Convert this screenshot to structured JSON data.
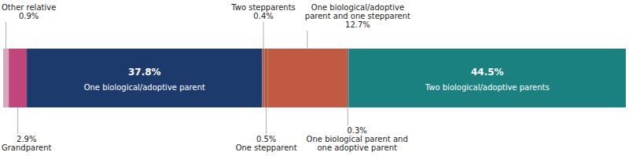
{
  "chart_data": {
    "type": "bar",
    "orientation": "horizontal",
    "stacked": true,
    "data_labels": true,
    "tick_labels": false,
    "categories": [
      null
    ],
    "xlim": [
      0,
      100
    ],
    "series": [
      {
        "name": "Other relative",
        "color": "#d4a8be",
        "values": [
          0.9
        ],
        "value_labels": [
          "0.9%"
        ]
      },
      {
        "name": "Grandparent",
        "color": "#c0457a",
        "values": [
          2.9
        ],
        "value_labels": [
          "2.9%"
        ]
      },
      {
        "name": "One biological/adoptive parent",
        "color": "#1c3a6b",
        "values": [
          37.8
        ],
        "value_labels": [
          "37.8%"
        ]
      },
      {
        "name": "Two stepparents",
        "color": "#b06060",
        "values": [
          0.4
        ],
        "value_labels": [
          "0.4%"
        ]
      },
      {
        "name": "One stepparent",
        "color": "#b05a3a",
        "values": [
          0.5
        ],
        "value_labels": [
          "0.5%"
        ]
      },
      {
        "name": "One biological/adoptive parent and one stepparent",
        "color": "#c05a42",
        "values": [
          12.7
        ],
        "value_labels": [
          "12.7%"
        ]
      },
      {
        "name": "One biological parent and one adoptive parent",
        "color": "#8a6060",
        "values": [
          0.3
        ],
        "value_labels": [
          "0.3%"
        ]
      },
      {
        "name": "Two biological/adoptive parents",
        "color": "#1a8080",
        "values": [
          44.5
        ],
        "value_labels": [
          "44.5%"
        ]
      }
    ]
  }
}
